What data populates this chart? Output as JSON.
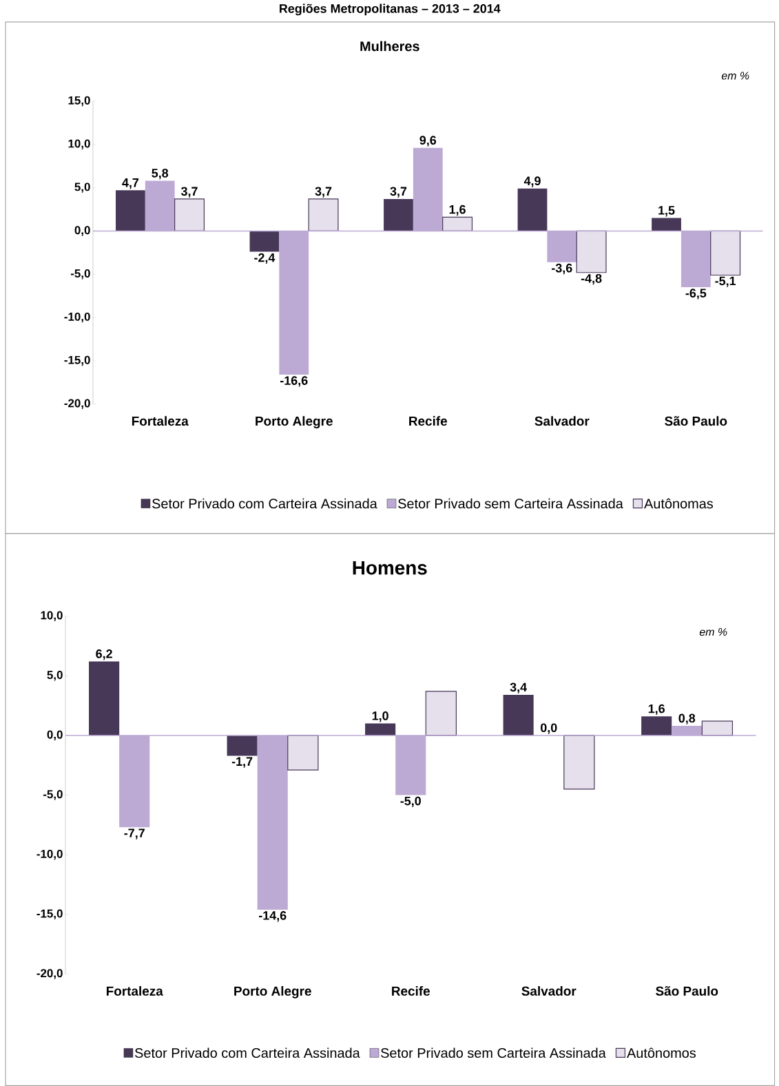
{
  "chart_data": [
    {
      "type": "bar",
      "title": "Mulheres",
      "annotations": [
        "Regiões Metropolitanas – 2013 – 2014",
        "em %"
      ],
      "categories": [
        "Fortaleza",
        "Porto Alegre",
        "Recife",
        "Salvador",
        "São Paulo"
      ],
      "series": [
        {
          "name": "Setor Privado com Carteira Assinada",
          "color": "#483858",
          "values": [
            4.7,
            -2.4,
            3.7,
            4.9,
            1.5
          ],
          "value_labels": [
            "4,7",
            "-2,4",
            "3,7",
            "4,9",
            "1,5"
          ]
        },
        {
          "name": "Setor Privado sem Carteira Assinada",
          "color": "#bcaad4",
          "values": [
            5.8,
            -16.6,
            9.6,
            -3.6,
            -6.5
          ],
          "value_labels": [
            "5,8",
            "-16,6",
            "9,6",
            "-3,6",
            "-6,5"
          ]
        },
        {
          "name": "Autônomas",
          "color": "#e6dfec",
          "values": [
            3.7,
            3.7,
            1.6,
            -4.8,
            -5.1
          ],
          "value_labels": [
            "3,7",
            "3,7",
            "1,6",
            "-4,8",
            "-5,1"
          ]
        }
      ],
      "ylim": [
        -20,
        15
      ],
      "yticks": [
        {
          "value": -20,
          "label": "-20,0"
        },
        {
          "value": -15,
          "label": "-15,0"
        },
        {
          "value": -10,
          "label": "-10,0"
        },
        {
          "value": -5,
          "label": "-5,0"
        },
        {
          "value": 0,
          "label": "0,0"
        },
        {
          "value": 5,
          "label": "5,0"
        },
        {
          "value": 10,
          "label": "10,0"
        },
        {
          "value": 15,
          "label": "15,0"
        }
      ],
      "ref_lines": [
        {
          "axis": "y",
          "value": 0,
          "color": "#bcaad4"
        }
      ],
      "legend": "bottom"
    },
    {
      "type": "bar",
      "title": "Homens",
      "annotations": [
        "em %"
      ],
      "categories": [
        "Fortaleza",
        "Porto Alegre",
        "Recife",
        "Salvador",
        "São Paulo"
      ],
      "series": [
        {
          "name": "Setor Privado com Carteira Assinada",
          "color": "#483858",
          "values": [
            6.2,
            -1.7,
            1.0,
            3.4,
            1.6
          ],
          "value_labels": [
            "6,2",
            "-1,7",
            "1,0",
            "3,4",
            "1,6"
          ]
        },
        {
          "name": "Setor Privado sem Carteira Assinada",
          "color": "#bcaad4",
          "values": [
            -7.7,
            -14.6,
            -5.0,
            0.0,
            0.8
          ],
          "value_labels": [
            "-7,7",
            "-14,6",
            "-5,0",
            "0,0",
            "0,8"
          ]
        },
        {
          "name": "Autônomos",
          "color": "#e6dfec",
          "values": [
            null,
            -2.9,
            3.7,
            -4.5,
            1.2
          ],
          "value_labels": [
            null,
            null,
            null,
            null,
            null
          ]
        }
      ],
      "ylim": [
        -20,
        10
      ],
      "yticks": [
        {
          "value": -20,
          "label": "-20,0"
        },
        {
          "value": -15,
          "label": "-15,0"
        },
        {
          "value": -10,
          "label": "-10,0"
        },
        {
          "value": -5,
          "label": "-5,0"
        },
        {
          "value": 0,
          "label": "0,0"
        },
        {
          "value": 5,
          "label": "5,0"
        },
        {
          "value": 10,
          "label": "10,0"
        }
      ],
      "ref_lines": [
        {
          "axis": "y",
          "value": 0,
          "color": "#bcaad4"
        }
      ],
      "legend": "bottom"
    }
  ]
}
